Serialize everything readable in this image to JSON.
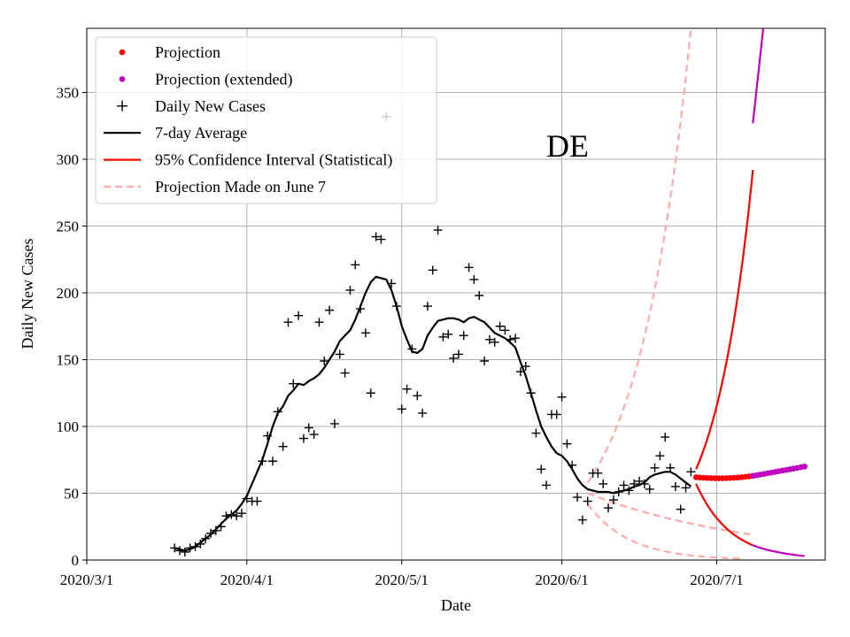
{
  "chart_data": {
    "type": "line",
    "title": "",
    "annotation": "DE",
    "xlabel": "Date",
    "ylabel": "Daily New Cases",
    "xlim_day": [
      0,
      143
    ],
    "ylim": [
      0,
      398
    ],
    "x_ticks": [
      {
        "day": 0,
        "label": "2020/3/1"
      },
      {
        "day": 31,
        "label": "2020/4/1"
      },
      {
        "day": 61,
        "label": "2020/5/1"
      },
      {
        "day": 92,
        "label": "2020/6/1"
      },
      {
        "day": 122,
        "label": "2020/7/1"
      }
    ],
    "y_ticks": [
      0,
      50,
      100,
      150,
      200,
      250,
      300,
      350
    ],
    "grid": true,
    "legend_position": "top-left",
    "legend": [
      {
        "key": "projection",
        "label": "Projection",
        "symbol": "dot",
        "color": "#ff0000"
      },
      {
        "key": "projection_ext",
        "label": "Projection (extended)",
        "symbol": "dot",
        "color": "#bf00bf"
      },
      {
        "key": "daily",
        "label": "Daily New Cases",
        "symbol": "plus",
        "color": "#000000"
      },
      {
        "key": "avg",
        "label": "7-day Average",
        "symbol": "line",
        "color": "#000000"
      },
      {
        "key": "ci",
        "label": "95% Confidence Interval (Statistical)",
        "symbol": "line",
        "color": "#ff0000"
      },
      {
        "key": "june7",
        "label": "Projection Made on June 7",
        "symbol": "dashed",
        "color": "#ffaaaa"
      }
    ],
    "series": {
      "daily_new_cases": [
        [
          17,
          9
        ],
        [
          18,
          7
        ],
        [
          19,
          6
        ],
        [
          20,
          9
        ],
        [
          21,
          10
        ],
        [
          22,
          12
        ],
        [
          23,
          16
        ],
        [
          24,
          20
        ],
        [
          25,
          22
        ],
        [
          26,
          25
        ],
        [
          27,
          33
        ],
        [
          28,
          34
        ],
        [
          29,
          33
        ],
        [
          30,
          35
        ],
        [
          31,
          46
        ],
        [
          32,
          44
        ],
        [
          33,
          44
        ],
        [
          34,
          74
        ],
        [
          35,
          93
        ],
        [
          36,
          74
        ],
        [
          37,
          111
        ],
        [
          38,
          85
        ],
        [
          39,
          178
        ],
        [
          40,
          132
        ],
        [
          41,
          183
        ],
        [
          42,
          91
        ],
        [
          43,
          99
        ],
        [
          44,
          94
        ],
        [
          45,
          178
        ],
        [
          46,
          149
        ],
        [
          47,
          187
        ],
        [
          48,
          102
        ],
        [
          49,
          154
        ],
        [
          50,
          140
        ],
        [
          51,
          202
        ],
        [
          52,
          221
        ],
        [
          53,
          188
        ],
        [
          54,
          170
        ],
        [
          55,
          125
        ],
        [
          56,
          242
        ],
        [
          57,
          240
        ],
        [
          58,
          332
        ],
        [
          59,
          207
        ],
        [
          60,
          190
        ],
        [
          61,
          113
        ],
        [
          62,
          128
        ],
        [
          63,
          158
        ],
        [
          64,
          123
        ],
        [
          65,
          110
        ],
        [
          66,
          190
        ],
        [
          67,
          217
        ],
        [
          68,
          247
        ],
        [
          69,
          167
        ],
        [
          70,
          169
        ],
        [
          71,
          151
        ],
        [
          72,
          154
        ],
        [
          73,
          168
        ],
        [
          74,
          219
        ],
        [
          75,
          210
        ],
        [
          76,
          198
        ],
        [
          77,
          149
        ],
        [
          78,
          165
        ],
        [
          79,
          163
        ],
        [
          80,
          175
        ],
        [
          81,
          172
        ],
        [
          82,
          165
        ],
        [
          83,
          166
        ],
        [
          84,
          141
        ],
        [
          85,
          145
        ],
        [
          86,
          125
        ],
        [
          87,
          95
        ],
        [
          88,
          68
        ],
        [
          89,
          56
        ],
        [
          90,
          109
        ],
        [
          91,
          109
        ],
        [
          92,
          122
        ],
        [
          93,
          87
        ],
        [
          94,
          71
        ],
        [
          95,
          47
        ],
        [
          96,
          30
        ],
        [
          97,
          44
        ],
        [
          98,
          65
        ],
        [
          99,
          65
        ],
        [
          100,
          57
        ],
        [
          101,
          39
        ],
        [
          102,
          45
        ],
        [
          103,
          51
        ],
        [
          104,
          56
        ],
        [
          105,
          52
        ],
        [
          106,
          57
        ],
        [
          107,
          59
        ],
        [
          108,
          57
        ],
        [
          109,
          53
        ],
        [
          110,
          69
        ],
        [
          111,
          78
        ],
        [
          112,
          92
        ],
        [
          113,
          69
        ],
        [
          114,
          55
        ],
        [
          115,
          38
        ],
        [
          116,
          54
        ],
        [
          117,
          66
        ]
      ],
      "seven_day_average": [
        [
          17,
          9
        ],
        [
          18,
          8
        ],
        [
          19,
          7
        ],
        [
          20,
          8
        ],
        [
          21,
          10
        ],
        [
          22,
          13
        ],
        [
          23,
          16
        ],
        [
          24,
          19
        ],
        [
          25,
          23
        ],
        [
          26,
          27
        ],
        [
          27,
          31
        ],
        [
          28,
          34
        ],
        [
          29,
          37
        ],
        [
          30,
          42
        ],
        [
          31,
          48
        ],
        [
          32,
          57
        ],
        [
          33,
          66
        ],
        [
          34,
          75
        ],
        [
          35,
          87
        ],
        [
          36,
          100
        ],
        [
          37,
          110
        ],
        [
          38,
          115
        ],
        [
          39,
          123
        ],
        [
          40,
          127
        ],
        [
          41,
          132
        ],
        [
          42,
          131
        ],
        [
          43,
          134
        ],
        [
          44,
          136
        ],
        [
          45,
          139
        ],
        [
          46,
          144
        ],
        [
          47,
          150
        ],
        [
          48,
          156
        ],
        [
          49,
          164
        ],
        [
          50,
          168
        ],
        [
          51,
          172
        ],
        [
          52,
          180
        ],
        [
          53,
          190
        ],
        [
          54,
          200
        ],
        [
          55,
          208
        ],
        [
          56,
          212
        ],
        [
          57,
          211
        ],
        [
          58,
          210
        ],
        [
          59,
          202
        ],
        [
          60,
          190
        ],
        [
          61,
          175
        ],
        [
          62,
          165
        ],
        [
          63,
          156
        ],
        [
          64,
          155
        ],
        [
          65,
          158
        ],
        [
          66,
          168
        ],
        [
          67,
          174
        ],
        [
          68,
          179
        ],
        [
          69,
          180
        ],
        [
          70,
          181
        ],
        [
          71,
          181
        ],
        [
          72,
          180
        ],
        [
          73,
          178
        ],
        [
          74,
          181
        ],
        [
          75,
          182
        ],
        [
          76,
          180
        ],
        [
          77,
          178
        ],
        [
          78,
          174
        ],
        [
          79,
          170
        ],
        [
          80,
          168
        ],
        [
          81,
          166
        ],
        [
          82,
          163
        ],
        [
          83,
          159
        ],
        [
          84,
          148
        ],
        [
          85,
          138
        ],
        [
          86,
          125
        ],
        [
          87,
          112
        ],
        [
          88,
          100
        ],
        [
          89,
          92
        ],
        [
          90,
          85
        ],
        [
          91,
          80
        ],
        [
          92,
          78
        ],
        [
          93,
          74
        ],
        [
          94,
          68
        ],
        [
          95,
          61
        ],
        [
          96,
          56
        ],
        [
          97,
          53
        ],
        [
          98,
          52
        ],
        [
          99,
          51
        ],
        [
          100,
          51
        ],
        [
          101,
          51
        ],
        [
          102,
          50
        ],
        [
          103,
          51
        ],
        [
          104,
          52
        ],
        [
          105,
          53
        ],
        [
          106,
          55
        ],
        [
          107,
          56
        ],
        [
          108,
          58
        ],
        [
          109,
          62
        ],
        [
          110,
          64
        ],
        [
          111,
          65
        ],
        [
          112,
          66
        ],
        [
          113,
          66
        ],
        [
          114,
          64
        ],
        [
          115,
          61
        ],
        [
          116,
          58
        ],
        [
          117,
          55
        ]
      ],
      "projection": {
        "start_day": 118,
        "end_day": 129,
        "start": 62,
        "mid": 60,
        "end": 63
      },
      "projection_extended": {
        "start_day": 129,
        "end_day": 139,
        "start": 63,
        "end": 70
      },
      "ci_upper": {
        "start_day": 118,
        "end_day": 129,
        "start": 68,
        "end": 292
      },
      "ci_lower": {
        "start_day": 118,
        "end_day": 129,
        "start": 57,
        "end": 11
      },
      "ci_upper_extended": {
        "start_day": 129,
        "end_day": 131,
        "start": 327,
        "end": 398
      },
      "ci_lower_extended": {
        "start_day": 129,
        "end_day": 139,
        "start": 11,
        "end": 3
      },
      "june7_center": {
        "start_day": 97,
        "end_day": 129,
        "start": 50,
        "end": 19
      },
      "june7_upper": {
        "start_day": 97,
        "end_day": 117,
        "start": 58,
        "end": 398
      },
      "june7_lower": {
        "start_day": 97,
        "end_day": 127,
        "start": 42,
        "end": 1
      }
    }
  }
}
